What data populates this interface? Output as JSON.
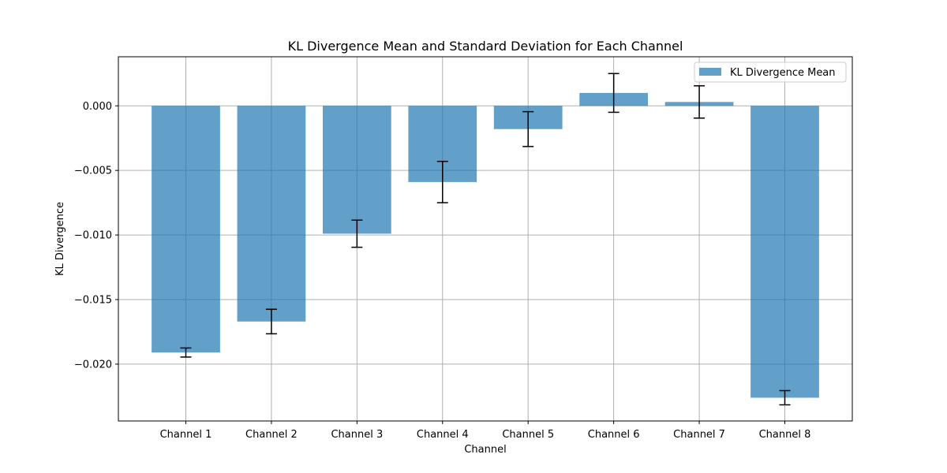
{
  "chart_data": {
    "type": "bar",
    "title": "KL Divergence Mean and Standard Deviation for Each Channel",
    "xlabel": "Channel",
    "ylabel": "KL Divergence",
    "categories": [
      "Channel 1",
      "Channel 2",
      "Channel 3",
      "Channel 4",
      "Channel 5",
      "Channel 6",
      "Channel 7",
      "Channel 8"
    ],
    "series": [
      {
        "name": "KL Divergence Mean",
        "values": [
          -0.0191,
          -0.0167,
          -0.0099,
          -0.0059,
          -0.0018,
          0.001,
          0.0003,
          -0.0226
        ],
        "errors": [
          0.00035,
          0.00095,
          0.00105,
          0.0016,
          0.00135,
          0.0015,
          0.00125,
          0.00055
        ]
      }
    ],
    "ylim": [
      -0.0244,
      0.0038
    ],
    "yticks": [
      0.0,
      -0.005,
      -0.01,
      -0.015,
      -0.02
    ],
    "ytick_labels": [
      "0.000",
      "−0.005",
      "−0.010",
      "−0.015",
      "−0.020"
    ],
    "grid": true,
    "legend_position": "top-right",
    "colors": {
      "bar": "#1f77b4",
      "bar_opacity": 0.7,
      "grid": "#b0b0b0",
      "error": "#000000"
    }
  }
}
